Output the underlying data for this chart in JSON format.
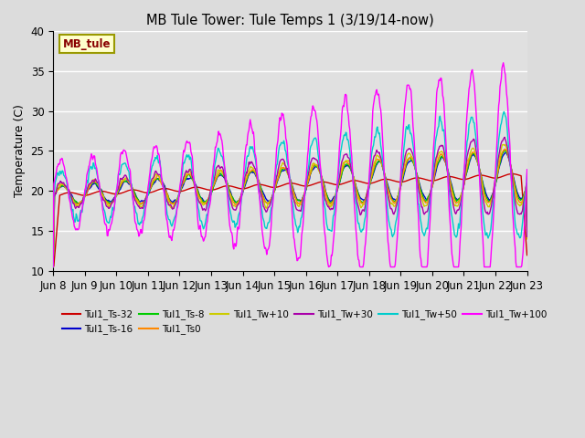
{
  "title": "MB Tule Tower: Tule Temps 1 (3/19/14-now)",
  "ylabel": "Temperature (C)",
  "ylim": [
    10,
    40
  ],
  "yticks": [
    10,
    15,
    20,
    25,
    30,
    35,
    40
  ],
  "x_tick_labels": [
    "Jun 8",
    "Jun 9",
    "Jun 10",
    "Jun 11",
    "Jun 12",
    "Jun 13",
    "Jun 14",
    "Jun 15",
    "Jun 16",
    "Jun 17",
    "Jun 18",
    "Jun 19",
    "Jun 20",
    "Jun 21",
    "Jun 22",
    "Jun 23"
  ],
  "background_color": "#dcdcdc",
  "plot_bg_color": "#e0e0e0",
  "series": [
    {
      "label": "Tul1_Ts-32",
      "color": "#cc0000"
    },
    {
      "label": "Tul1_Ts-16",
      "color": "#0000cc"
    },
    {
      "label": "Tul1_Ts-8",
      "color": "#00cc00"
    },
    {
      "label": "Tul1_Ts0",
      "color": "#ff8800"
    },
    {
      "label": "Tul1_Tw+10",
      "color": "#cccc00"
    },
    {
      "label": "Tul1_Tw+30",
      "color": "#aa00aa"
    },
    {
      "label": "Tul1_Tw+50",
      "color": "#00cccc"
    },
    {
      "label": "Tul1_Tw+100",
      "color": "#ff00ff"
    }
  ],
  "legend_box_color": "#ffffcc",
  "legend_box_text": "MB_tule",
  "legend_box_text_color": "#880000"
}
